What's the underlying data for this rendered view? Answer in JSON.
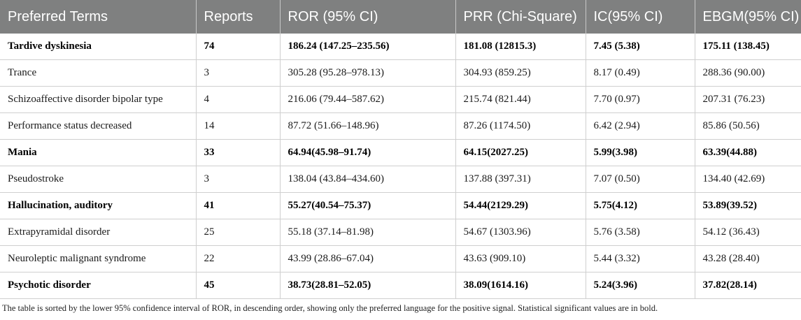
{
  "table": {
    "headers": [
      "Preferred Terms",
      "Reports",
      "ROR (95% CI)",
      "PRR (Chi-Square)",
      "IC(95% CI)",
      "EBGM(95% CI)"
    ],
    "rows": [
      {
        "bold": true,
        "cells": [
          "Tardive dyskinesia",
          "74",
          "186.24 (147.25–235.56)",
          "181.08 (12815.3)",
          "7.45 (5.38)",
          "175.11 (138.45)"
        ]
      },
      {
        "bold": false,
        "cells": [
          "Trance",
          "3",
          "305.28 (95.28–978.13)",
          "304.93 (859.25)",
          "8.17 (0.49)",
          "288.36 (90.00)"
        ]
      },
      {
        "bold": false,
        "cells": [
          "Schizoaffective disorder bipolar type",
          "4",
          "216.06 (79.44–587.62)",
          "215.74 (821.44)",
          "7.70 (0.97)",
          "207.31 (76.23)"
        ]
      },
      {
        "bold": false,
        "cells": [
          "Performance status decreased",
          "14",
          "87.72 (51.66–148.96)",
          "87.26 (1174.50)",
          "6.42 (2.94)",
          "85.86 (50.56)"
        ]
      },
      {
        "bold": true,
        "cells": [
          "Mania",
          "33",
          "64.94(45.98–91.74)",
          "64.15(2027.25)",
          "5.99(3.98)",
          "63.39(44.88)"
        ]
      },
      {
        "bold": false,
        "cells": [
          "Pseudostroke",
          "3",
          "138.04 (43.84–434.60)",
          "137.88 (397.31)",
          "7.07 (0.50)",
          "134.40 (42.69)"
        ]
      },
      {
        "bold": true,
        "cells": [
          "Hallucination, auditory",
          "41",
          "55.27(40.54–75.37)",
          "54.44(2129.29)",
          "5.75(4.12)",
          "53.89(39.52)"
        ]
      },
      {
        "bold": false,
        "cells": [
          "Extrapyramidal disorder",
          "25",
          "55.18 (37.14–81.98)",
          "54.67 (1303.96)",
          "5.76 (3.58)",
          "54.12 (36.43)"
        ]
      },
      {
        "bold": false,
        "cells": [
          "Neuroleptic malignant syndrome",
          "22",
          "43.99 (28.86–67.04)",
          "43.63 (909.10)",
          "5.44 (3.32)",
          "43.28 (28.40)"
        ]
      },
      {
        "bold": true,
        "cells": [
          "Psychotic disorder",
          "45",
          "38.73(28.81–52.05)",
          "38.09(1614.16)",
          "5.24(3.96)",
          "37.82(28.14)"
        ]
      }
    ]
  },
  "footnote": "The table is sorted by the lower 95% confidence interval of ROR, in descending order, showing only the preferred language for the positive signal. Statistical significant values are in bold."
}
